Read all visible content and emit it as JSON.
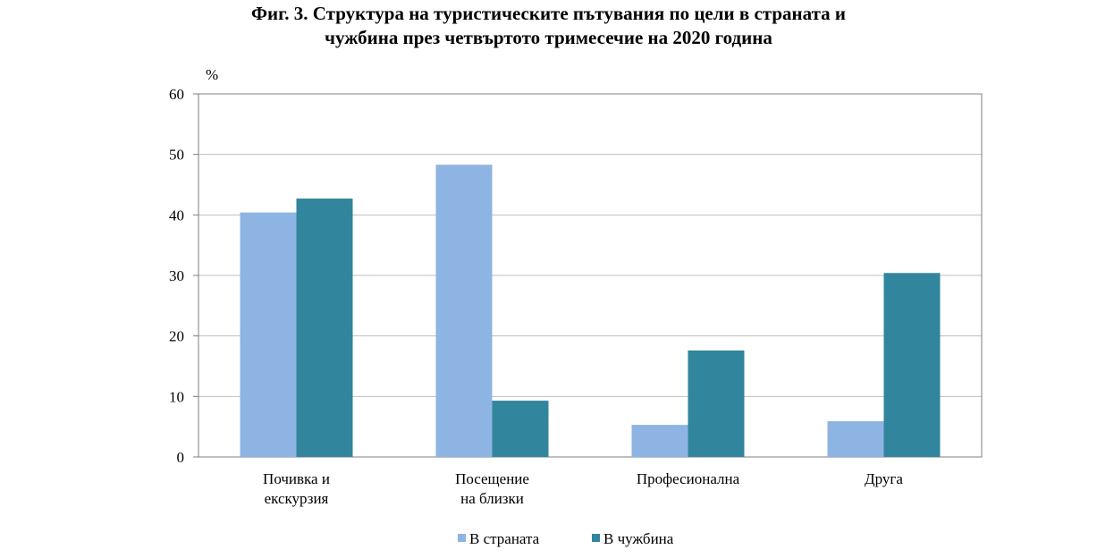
{
  "title_lines": [
    "Фиг. 3. Структура на туристическите пътувания по цели в страната и",
    "чужбина през четвъртото тримесечие на 2020 година"
  ],
  "chart_data": {
    "type": "bar",
    "ylabel": "%",
    "ylim": [
      0,
      60
    ],
    "yticks": [
      0,
      10,
      20,
      30,
      40,
      50,
      60
    ],
    "grid": true,
    "legend_position": "bottom",
    "categories": [
      [
        "Почивка и",
        "екскурзия"
      ],
      [
        "Посещение",
        "на близки"
      ],
      [
        "Професионална"
      ],
      [
        "Друга"
      ]
    ],
    "series": [
      {
        "name": "В страната",
        "color": "#8EB4E3",
        "values": [
          40.4,
          48.3,
          5.3,
          5.9
        ]
      },
      {
        "name": "В чужбина",
        "color": "#31859C",
        "values": [
          42.7,
          9.3,
          17.6,
          30.4
        ]
      }
    ]
  }
}
